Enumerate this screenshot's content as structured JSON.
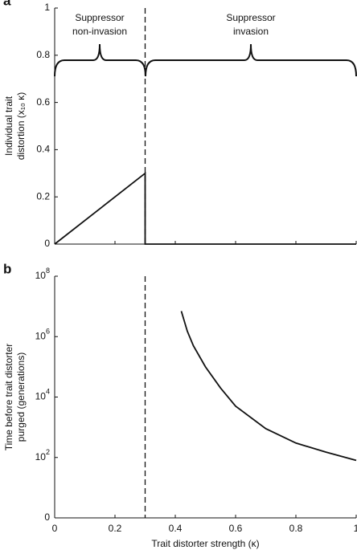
{
  "chart_data": [
    {
      "type": "line",
      "panel_label": "a",
      "ylabel": [
        "Individual trait",
        "distortion (x₁₀ κ)"
      ],
      "annotations": [
        {
          "lines": [
            "Suppressor",
            "non-invasion"
          ]
        },
        {
          "lines": [
            "Suppressor",
            "invasion"
          ]
        }
      ],
      "xlim": [
        0,
        1
      ],
      "xticks": [
        0,
        0.2,
        0.4,
        0.6,
        0.8,
        1
      ],
      "show_xtick_labels": false,
      "ylim": [
        0,
        1
      ],
      "yticks": [
        0,
        0.2,
        0.4,
        0.6,
        0.8,
        1
      ],
      "yscale": "linear",
      "vlines": [
        0.3
      ],
      "series": [
        {
          "color": "#111111",
          "x": [
            0,
            0.3,
            0.3,
            1
          ],
          "values": [
            0,
            0.3,
            0,
            0
          ]
        }
      ]
    },
    {
      "type": "line",
      "panel_label": "b",
      "ylabel": [
        "Time before trait distorter",
        "purged (generations)"
      ],
      "xlabel": "Trait distorter strength (κ)",
      "xlim": [
        0,
        1
      ],
      "xticks": [
        0,
        0.2,
        0.4,
        0.6,
        0.8,
        1
      ],
      "show_xtick_labels": true,
      "ylim": [
        1,
        100000000
      ],
      "yscale": "log",
      "yticks": [
        {
          "value": 1,
          "label": "0"
        },
        {
          "value": 100,
          "label": "10",
          "exponent": "2"
        },
        {
          "value": 10000,
          "label": "10",
          "exponent": "4"
        },
        {
          "value": 1000000,
          "label": "10",
          "exponent": "6"
        },
        {
          "value": 100000000,
          "label": "10",
          "exponent": "8"
        }
      ],
      "vlines": [
        0.3
      ],
      "series": [
        {
          "color": "#111111",
          "x": [
            0.42,
            0.44,
            0.46,
            0.5,
            0.55,
            0.6,
            0.7,
            0.8,
            0.9,
            1
          ],
          "values": [
            7000000,
            1500000,
            500000,
            100000,
            20000,
            5000,
            900,
            300,
            150,
            80
          ]
        }
      ]
    }
  ]
}
